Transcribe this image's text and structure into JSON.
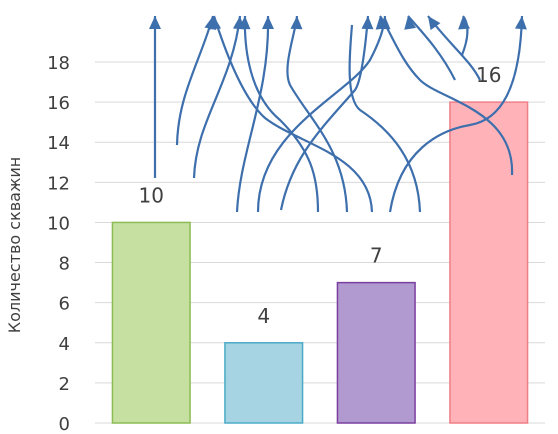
{
  "chart_data": {
    "type": "bar",
    "categories": [
      "",
      "",
      "",
      ""
    ],
    "values": [
      10,
      4,
      7,
      16
    ],
    "ylabel": "Количество скважин",
    "xlabel": "",
    "ylim": [
      0,
      19
    ],
    "yticks": [
      0,
      2,
      4,
      6,
      8,
      10,
      12,
      14,
      16,
      18
    ],
    "grid": true,
    "legend": "none",
    "data_labels": [
      "10",
      "4",
      "7",
      "16"
    ],
    "colors": {
      "fills": [
        "#c5e0a0",
        "#a6d4e2",
        "#b09ad0",
        "#ffb3b8"
      ],
      "strokes": [
        "#8cbc55",
        "#4aabc7",
        "#7b3fa0",
        "#f07e86"
      ],
      "arrows": "#3e6fad",
      "grid": "#d9d9d9"
    }
  }
}
